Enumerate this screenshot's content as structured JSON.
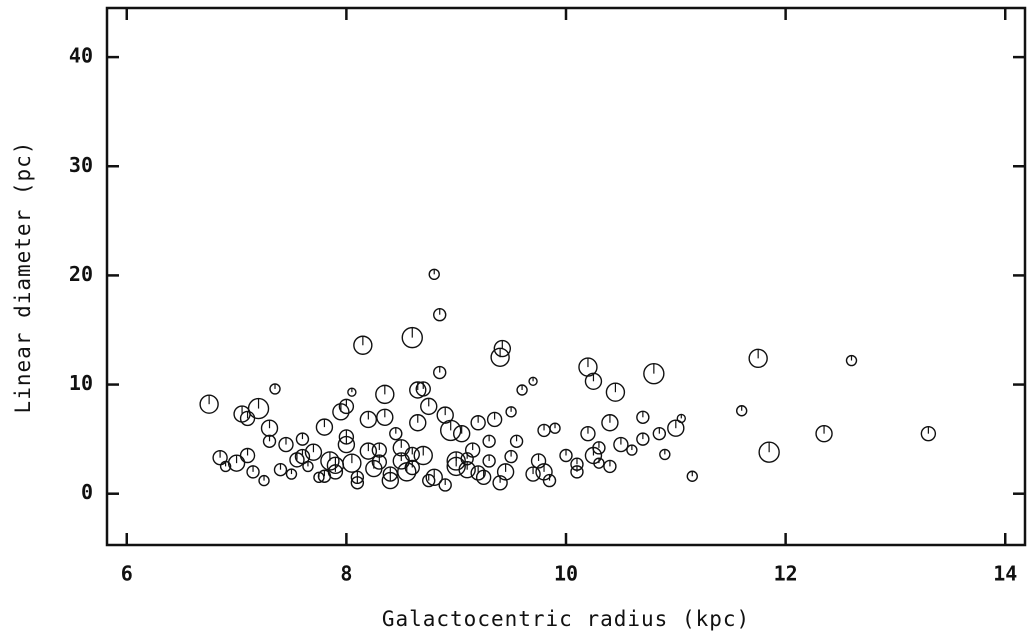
{
  "chart_data": {
    "type": "scatter",
    "x_label": "Galactocentric radius (kpc)",
    "y_label": "Linear diameter (pc)",
    "xlim": [
      5.82,
      14.18
    ],
    "ylim": [
      -4.7,
      44.5
    ],
    "xticks": [
      6,
      8,
      10,
      12,
      14
    ],
    "yticks": [
      0,
      10,
      20,
      30,
      40
    ],
    "color": "#111",
    "series": [
      {
        "x": [
          6.75,
          6.85,
          6.9,
          7.05,
          7.1,
          7.2,
          7.15,
          7.1,
          7.0,
          7.25,
          7.35,
          7.3,
          7.3,
          7.4,
          7.45,
          7.5,
          7.55,
          7.6,
          7.65,
          7.7,
          7.75,
          7.8,
          7.85,
          7.9,
          7.95,
          8.0,
          8.05,
          8.0,
          8.05,
          8.1,
          8.15,
          8.2,
          8.25,
          8.3,
          8.35,
          8.35,
          8.4,
          8.45,
          8.5,
          8.55,
          8.6,
          8.65,
          8.7,
          8.65,
          8.7,
          8.75,
          8.8,
          8.85,
          8.85,
          8.8,
          8.9,
          8.9,
          8.95,
          9.0,
          9.05,
          9.1,
          9.15,
          9.2,
          9.25,
          9.3,
          9.35,
          9.4,
          9.42,
          9.45,
          9.5,
          9.55,
          9.6,
          9.7,
          9.75,
          9.8,
          9.8,
          9.85,
          9.9,
          10.0,
          10.1,
          10.2,
          10.25,
          10.2,
          10.25,
          10.3,
          10.4,
          10.45,
          10.4,
          10.5,
          10.6,
          10.7,
          10.7,
          10.8,
          10.85,
          10.9,
          11.0,
          11.05,
          11.15,
          11.6,
          11.75,
          11.85,
          12.35,
          12.6,
          13.3,
          7.6,
          7.9,
          8.1,
          8.3,
          8.5,
          8.6,
          8.75,
          9.0,
          9.2,
          9.3,
          9.5,
          9.7,
          8.2,
          8.0,
          7.8,
          8.4,
          8.6,
          9.1,
          9.4,
          10.1,
          10.3
        ],
        "values": [
          8.2,
          3.3,
          2.5,
          7.3,
          6.9,
          7.8,
          2.0,
          3.5,
          2.8,
          1.2,
          9.6,
          6.0,
          4.8,
          2.2,
          4.5,
          1.8,
          3.1,
          5.0,
          2.5,
          3.8,
          1.5,
          6.1,
          3.0,
          2.0,
          7.5,
          8.0,
          9.3,
          4.5,
          2.8,
          1.5,
          13.6,
          6.8,
          2.3,
          4.0,
          9.1,
          7.0,
          1.8,
          5.5,
          3.0,
          2.0,
          14.3,
          9.5,
          9.6,
          6.5,
          3.5,
          8.0,
          20.1,
          16.4,
          11.1,
          1.5,
          7.2,
          0.8,
          5.8,
          3.0,
          5.5,
          2.2,
          4.0,
          6.5,
          1.5,
          3.0,
          6.8,
          12.5,
          13.3,
          2.0,
          7.5,
          4.8,
          9.5,
          10.3,
          3.0,
          2.0,
          5.8,
          1.2,
          6.0,
          3.5,
          2.0,
          11.6,
          10.3,
          5.5,
          3.5,
          2.8,
          6.5,
          9.3,
          2.5,
          4.5,
          4.0,
          7.0,
          5.0,
          11.0,
          5.5,
          3.6,
          6.0,
          6.9,
          1.6,
          7.6,
          12.4,
          3.8,
          5.5,
          12.2,
          5.5,
          3.4,
          2.6,
          1.0,
          2.9,
          4.2,
          2.4,
          1.2,
          2.5,
          1.9,
          4.8,
          3.4,
          1.8,
          3.9,
          5.2,
          1.6,
          1.2,
          3.6,
          3.2,
          1.0,
          2.7,
          4.2
        ],
        "sizes": [
          9,
          7,
          5,
          8,
          7,
          10,
          6,
          7,
          8,
          5,
          5,
          8,
          6,
          6,
          7,
          5,
          7,
          6,
          5,
          8,
          5,
          8,
          9,
          7,
          8,
          7,
          4,
          8,
          9,
          6,
          9,
          8,
          8,
          7,
          9,
          8,
          7,
          6,
          8,
          9,
          10,
          8,
          7,
          8,
          9,
          8,
          5,
          6,
          6,
          8,
          8,
          6,
          10,
          9,
          8,
          8,
          7,
          7,
          7,
          6,
          7,
          9,
          8,
          8,
          5,
          6,
          5,
          4,
          7,
          8,
          6,
          6,
          5,
          6,
          6,
          9,
          8,
          7,
          8,
          5,
          8,
          9,
          6,
          7,
          5,
          6,
          6,
          10,
          6,
          5,
          8,
          4,
          5,
          5,
          9,
          10,
          8,
          5,
          7,
          7,
          8,
          6,
          7,
          8,
          7,
          6,
          9,
          7,
          6,
          6,
          7,
          8,
          7,
          6,
          8,
          7,
          6,
          7,
          6,
          6
        ]
      }
    ]
  }
}
